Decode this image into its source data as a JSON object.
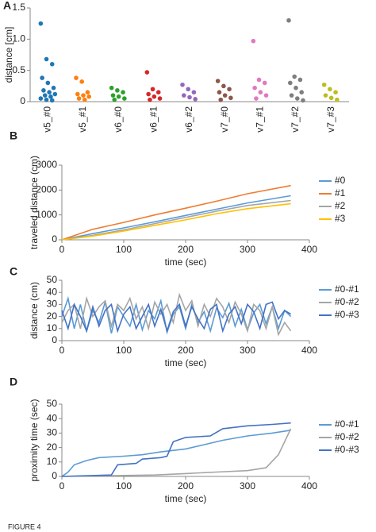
{
  "chart_data": [
    {
      "type": "strip",
      "panel": "A",
      "ylabel": "distance [cm]",
      "categories": [
        "v5_#0",
        "v5_#1",
        "v6_#0",
        "v6_#1",
        "v6_#2",
        "v7_#0",
        "v7_#1",
        "v7_#2",
        "v7_#3"
      ],
      "colors": [
        "#1f77b4",
        "#ff7f0e",
        "#2ca02c",
        "#d62728",
        "#9467bd",
        "#8c564b",
        "#e377c2",
        "#7f7f7f",
        "#bcbd22"
      ],
      "values": [
        [
          1.25,
          0.68,
          0.6,
          0.38,
          0.3,
          0.22,
          0.18,
          0.15,
          0.12,
          0.1,
          0.08,
          0.05,
          0.03,
          0.02
        ],
        [
          0.38,
          0.32,
          0.15,
          0.12,
          0.1,
          0.08,
          0.05,
          0.03
        ],
        [
          0.22,
          0.18,
          0.15,
          0.1,
          0.08,
          0.05,
          0.03
        ],
        [
          0.47,
          0.2,
          0.15,
          0.12,
          0.08,
          0.05,
          0.03
        ],
        [
          0.27,
          0.2,
          0.15,
          0.1,
          0.07,
          0.04
        ],
        [
          0.33,
          0.25,
          0.2,
          0.15,
          0.1,
          0.06,
          0.03
        ],
        [
          0.97,
          0.35,
          0.3,
          0.22,
          0.15,
          0.1,
          0.05
        ],
        [
          1.3,
          0.4,
          0.35,
          0.3,
          0.22,
          0.15,
          0.1,
          0.05,
          0.02
        ],
        [
          0.27,
          0.2,
          0.15,
          0.1,
          0.06,
          0.03
        ]
      ],
      "ylim": [
        0,
        1.5
      ],
      "yticks": [
        0,
        0.5,
        {
          "value": 1,
          "label": "1.0"
        },
        1.5
      ]
    },
    {
      "type": "line",
      "panel": "B",
      "ylabel": "traveled distance (cm)",
      "xlabel": "time (sec)",
      "x": [
        0,
        50,
        100,
        150,
        200,
        250,
        300,
        370
      ],
      "series": [
        {
          "name": "#0",
          "color": "#5b9bd5",
          "values": [
            0,
            250,
            480,
            720,
            980,
            1230,
            1480,
            1770
          ]
        },
        {
          "name": "#1",
          "color": "#ed7d31",
          "values": [
            0,
            420,
            700,
            1000,
            1270,
            1550,
            1850,
            2180
          ]
        },
        {
          "name": "#2",
          "color": "#a5a5a5",
          "values": [
            0,
            180,
            400,
            650,
            900,
            1150,
            1380,
            1580
          ]
        },
        {
          "name": "#3",
          "color": "#ffc000",
          "values": [
            0,
            150,
            350,
            580,
            800,
            1050,
            1250,
            1450
          ]
        }
      ],
      "xlim": [
        0,
        400
      ],
      "xticks": [
        0,
        100,
        200,
        300,
        400
      ],
      "ylim": [
        0,
        3000
      ],
      "yticks": [
        0,
        1000,
        2000,
        3000
      ]
    },
    {
      "type": "line",
      "panel": "C",
      "ylabel": "distance (cm)",
      "xlabel": "time (sec)",
      "x": [
        0,
        10,
        20,
        30,
        40,
        50,
        60,
        70,
        80,
        90,
        100,
        110,
        120,
        130,
        140,
        150,
        160,
        170,
        180,
        190,
        200,
        210,
        220,
        230,
        240,
        250,
        260,
        270,
        280,
        290,
        300,
        310,
        320,
        330,
        340,
        350,
        360,
        370
      ],
      "series": [
        {
          "name": "#0-#1",
          "color": "#5b9bd5",
          "values": [
            20,
            35,
            10,
            30,
            8,
            25,
            15,
            32,
            6,
            28,
            20,
            12,
            30,
            9,
            25,
            18,
            33,
            7,
            22,
            28,
            10,
            30,
            15,
            24,
            8,
            27,
            19,
            31,
            12,
            26,
            9,
            23,
            30,
            14,
            28,
            10,
            25,
            20
          ]
        },
        {
          "name": "#0-#2",
          "color": "#a5a5a5",
          "values": [
            15,
            25,
            30,
            10,
            35,
            20,
            28,
            33,
            12,
            30,
            25,
            35,
            18,
            28,
            10,
            32,
            22,
            30,
            15,
            38,
            25,
            33,
            12,
            30,
            20,
            35,
            28,
            15,
            32,
            22,
            8,
            30,
            25,
            10,
            28,
            5,
            15,
            8
          ]
        },
        {
          "name": "#0-#3",
          "color": "#4472c4",
          "values": [
            25,
            10,
            30,
            20,
            8,
            28,
            12,
            25,
            30,
            8,
            22,
            28,
            10,
            20,
            30,
            12,
            26,
            8,
            24,
            30,
            12,
            28,
            18,
            10,
            26,
            30,
            8,
            22,
            28,
            14,
            30,
            24,
            10,
            30,
            32,
            18,
            25,
            22
          ]
        }
      ],
      "xlim": [
        0,
        400
      ],
      "xticks": [
        0,
        100,
        200,
        300,
        400
      ],
      "ylim": [
        0,
        50
      ],
      "yticks": [
        0,
        10,
        20,
        30,
        40,
        50
      ]
    },
    {
      "type": "line",
      "panel": "D",
      "ylabel": "proximity time (sec)",
      "xlabel": "time (sec)",
      "series": [
        {
          "name": "#0-#1",
          "color": "#5b9bd5",
          "x": [
            0,
            10,
            20,
            40,
            60,
            100,
            130,
            160,
            200,
            230,
            260,
            300,
            340,
            370
          ],
          "values": [
            0,
            3,
            8,
            11,
            13,
            14,
            15,
            17,
            19,
            22,
            25,
            28,
            30,
            32
          ]
        },
        {
          "name": "#0-#2",
          "color": "#a5a5a5",
          "x": [
            0,
            150,
            200,
            250,
            300,
            330,
            350,
            370
          ],
          "values": [
            0,
            1,
            2,
            3,
            4,
            6,
            15,
            33
          ]
        },
        {
          "name": "#0-#3",
          "color": "#4472c4",
          "x": [
            0,
            80,
            90,
            120,
            130,
            160,
            170,
            180,
            200,
            240,
            260,
            300,
            340,
            370
          ],
          "values": [
            0,
            1,
            8,
            9,
            12,
            13,
            14,
            24,
            27,
            28,
            33,
            35,
            36,
            37
          ]
        }
      ],
      "xlim": [
        0,
        400
      ],
      "xticks": [
        0,
        100,
        200,
        300,
        400
      ],
      "ylim": [
        0,
        50
      ],
      "yticks": [
        0,
        10,
        20,
        30,
        40,
        50
      ]
    }
  ],
  "footer": "FIGURE 4"
}
